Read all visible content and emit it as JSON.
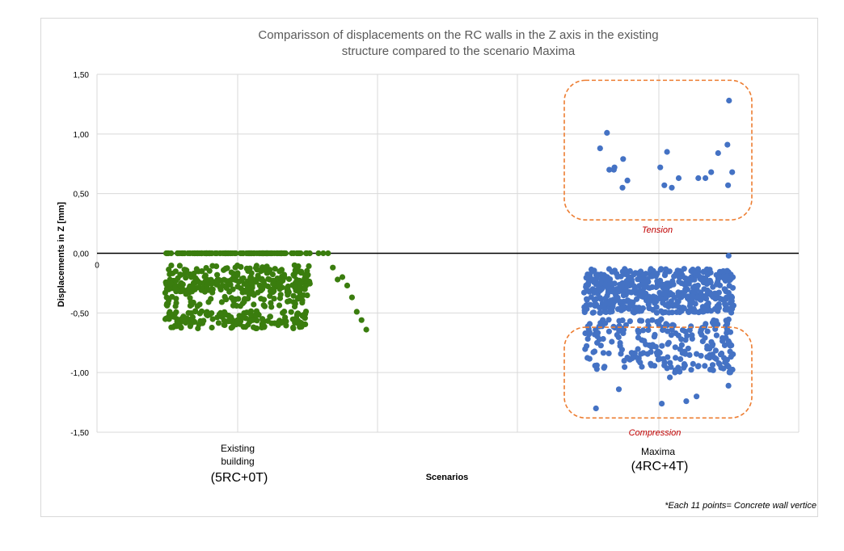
{
  "chart_data": {
    "type": "scatter",
    "title_lines": [
      "Comparisson of displacements on the RC walls in the Z axis in the existing",
      "structure compared to the scenario Maxima"
    ],
    "ylabel": "Displacements in Z [mm]",
    "xlabel": "Scenarios",
    "ylim": [
      -1.5,
      1.5
    ],
    "yticks": [
      "1,50",
      "1,00",
      "0,50",
      "0,00",
      "-0,50",
      "-1,00",
      "-1,50"
    ],
    "ytick_values": [
      1.5,
      1.0,
      0.5,
      0.0,
      -0.5,
      -1.0,
      -1.5
    ],
    "x_origin_label": "0",
    "grid": true,
    "categories": [
      {
        "name_lines": [
          "Existing",
          "building"
        ],
        "sub": "(5RC+0T)"
      },
      {
        "name_lines": [
          "Maxima"
        ],
        "sub": "(4RC+4T)"
      }
    ],
    "series": [
      {
        "color": "#3a7d0e",
        "category_index": 0,
        "clusters": [
          {
            "y_min": 0.0,
            "y_max": 0.0,
            "count": 130
          },
          {
            "y_min": -0.33,
            "y_max": -0.1,
            "count": 200
          },
          {
            "y_min": -0.45,
            "y_max": -0.2,
            "count": 130
          },
          {
            "y_min": -0.63,
            "y_max": -0.48,
            "count": 160
          }
        ],
        "outliers_y": [
          0.0,
          0.0,
          0.0,
          -0.12,
          -0.22,
          -0.2,
          -0.27,
          -0.37,
          -0.49,
          -0.56,
          -0.64
        ]
      },
      {
        "color": "#4472c4",
        "category_index": 1,
        "tension_values": [
          1.28,
          1.01,
          0.91,
          0.88,
          0.85,
          0.84,
          0.79,
          0.72,
          0.72,
          0.7,
          0.7,
          0.68,
          0.68,
          0.63,
          0.63,
          0.63,
          0.61,
          0.57,
          0.57,
          0.55,
          0.55
        ],
        "clusters": [
          {
            "y_min": -0.5,
            "y_max": -0.13,
            "count": 520
          },
          {
            "y_min": -1.0,
            "y_max": -0.55,
            "count": 230
          }
        ],
        "outliers_y": [
          -0.02,
          -1.04,
          -1.11,
          -1.14,
          -1.2,
          -1.24,
          -1.26,
          -1.3
        ]
      }
    ],
    "annotations": [
      {
        "label": "Tension",
        "y_range": [
          0.28,
          1.45
        ]
      },
      {
        "label": "Compression",
        "y_range": [
          -1.38,
          -0.62
        ]
      }
    ],
    "footnote": "*Each 11 points= Concrete wall vertice"
  }
}
